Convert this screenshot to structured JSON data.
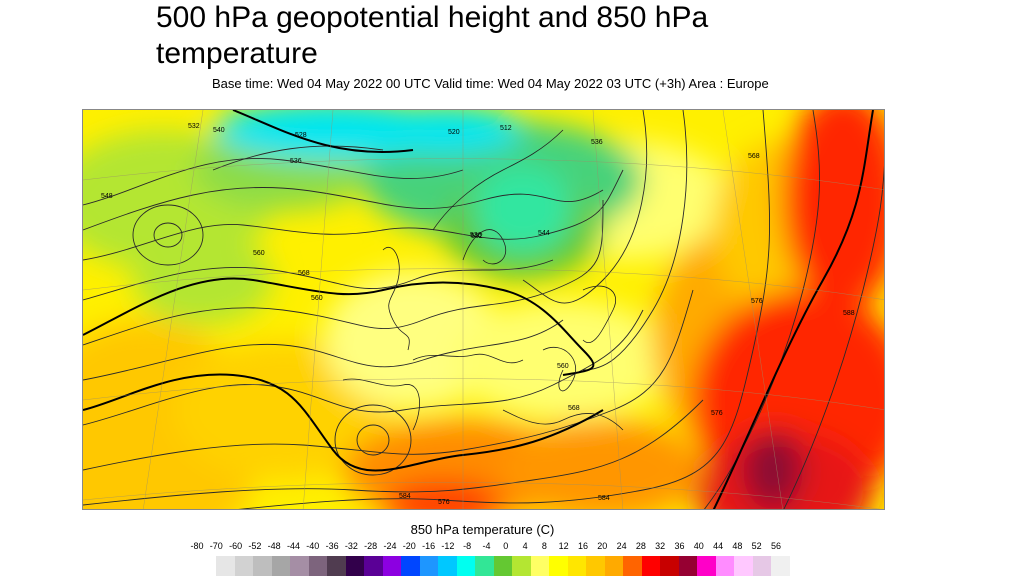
{
  "title": "500 hPa geopotential height and 850 hPa temperature",
  "subtitle": "Base time: Wed 04 May 2022 00 UTC Valid time: Wed 04 May 2022 03 UTC (+3h) Area : Europe",
  "legend": {
    "title": "850 hPa temperature (C)",
    "ticks": [
      "-80",
      "-70",
      "-60",
      "-52",
      "-48",
      "-44",
      "-40",
      "-36",
      "-32",
      "-28",
      "-24",
      "-20",
      "-16",
      "-12",
      "-8",
      "-4",
      "0",
      "4",
      "8",
      "12",
      "16",
      "20",
      "24",
      "28",
      "32",
      "36",
      "40",
      "44",
      "48",
      "52",
      "56"
    ],
    "colors": [
      "#e6e6e6",
      "#d2d2d2",
      "#bebebe",
      "#a6a6a6",
      "#a58ea5",
      "#7d647d",
      "#503c50",
      "#32004b",
      "#5a0096",
      "#8c00e1",
      "#0046ff",
      "#1e96ff",
      "#00c8ff",
      "#00fff0",
      "#32e696",
      "#64c832",
      "#b4e632",
      "#ffff64",
      "#ffff00",
      "#ffe600",
      "#ffc800",
      "#ffaa00",
      "#ff6400",
      "#ff0000",
      "#c80000",
      "#960032",
      "#ff00c8",
      "#ff8cff",
      "#ffc8ff",
      "#e6c8e6",
      "#f0f0f0"
    ]
  },
  "map": {
    "contour_labels": [
      "532",
      "540",
      "528",
      "536",
      "520",
      "512",
      "536",
      "548",
      "560",
      "568",
      "560",
      "568",
      "560",
      "544",
      "552",
      "568",
      "576",
      "584",
      "576",
      "588",
      "576",
      "584",
      "536"
    ]
  }
}
